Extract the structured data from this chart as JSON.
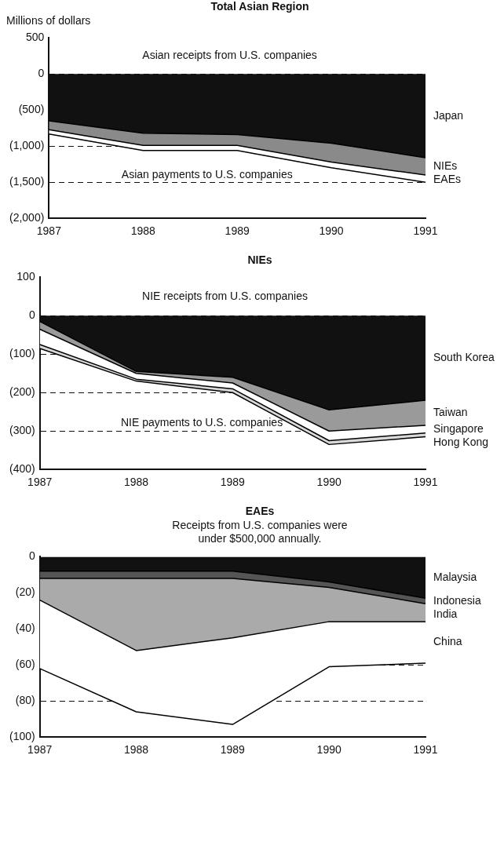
{
  "chart_data": [
    {
      "type": "area",
      "title": "Total Asian Region",
      "ylabel": "Millions of dollars",
      "categories": [
        "1987",
        "1988",
        "1989",
        "1990",
        "1991"
      ],
      "stacked": true,
      "grid": "y",
      "series": [
        {
          "name": "Japan",
          "color": "#111111",
          "values": [
            -650,
            -820,
            -840,
            -960,
            -1160
          ]
        },
        {
          "name": "NIEs",
          "color": "#8a8a8a",
          "values": [
            -120,
            -170,
            -150,
            -260,
            -240
          ]
        },
        {
          "name": "EAEs",
          "color": "#ffffff",
          "values": [
            -60,
            -70,
            -70,
            -80,
            -100
          ]
        }
      ],
      "ylim": [
        -2000,
        500
      ],
      "yticks": [
        500,
        0,
        {
          "value": -500,
          "label": "(500)"
        },
        {
          "value": -1000,
          "label": "(1,000)"
        },
        {
          "value": -1500,
          "label": "(1,500)"
        },
        {
          "value": -2000,
          "label": "(2,000)"
        }
      ],
      "annotations": [
        "Asian receipts from U.S. companies",
        "Asian payments to U.S. companies"
      ]
    },
    {
      "type": "area",
      "title": "NIEs",
      "categories": [
        "1987",
        "1988",
        "1989",
        "1990",
        "1991"
      ],
      "stacked": true,
      "grid": "y",
      "series": [
        {
          "name": "South Korea",
          "color": "#111111",
          "values": [
            -15,
            -145,
            -160,
            -245,
            -220
          ]
        },
        {
          "name": "Taiwan",
          "color": "#9a9a9a",
          "values": [
            -20,
            -5,
            -15,
            -55,
            -65
          ]
        },
        {
          "name": "Singapore",
          "color": "#ffffff",
          "values": [
            -40,
            -15,
            -15,
            -25,
            -20
          ]
        },
        {
          "name": "Hong Kong",
          "color": "#d8d8d8",
          "values": [
            -10,
            -5,
            -10,
            -10,
            -10
          ]
        }
      ],
      "ylim": [
        -400,
        100
      ],
      "yticks": [
        100,
        0,
        {
          "value": -100,
          "label": "(100)"
        },
        {
          "value": -200,
          "label": "(200)"
        },
        {
          "value": -300,
          "label": "(300)"
        },
        {
          "value": -400,
          "label": "(400)"
        }
      ],
      "annotations": [
        "NIE receipts from U.S. companies",
        "NIE payments to U.S. companies"
      ]
    },
    {
      "type": "area",
      "title": "EAEs",
      "subtitle": "Receipts from U.S. companies were under $500,000 annually.",
      "categories": [
        "1987",
        "1988",
        "1989",
        "1990",
        "1991"
      ],
      "stacked": true,
      "grid": "y",
      "series": [
        {
          "name": "Malaysia",
          "color": "#111111",
          "values": [
            -8,
            -8,
            -8,
            -14,
            -23
          ]
        },
        {
          "name": "Indonesia",
          "color": "#555555",
          "values": [
            -4,
            -4,
            -4,
            -3,
            -3
          ]
        },
        {
          "name": "India",
          "color": "#aaaaaa",
          "values": [
            -12,
            -40,
            -33,
            -19,
            -10
          ]
        },
        {
          "name": "China",
          "color": "#ffffff",
          "values": [
            -38,
            -34,
            -48,
            -25,
            -23
          ]
        }
      ],
      "ylim": [
        -100,
        0
      ],
      "yticks": [
        0,
        {
          "value": -20,
          "label": "(20)"
        },
        {
          "value": -40,
          "label": "(40)"
        },
        {
          "value": -60,
          "label": "(60)"
        },
        {
          "value": -80,
          "label": "(80)"
        },
        {
          "value": -100,
          "label": "(100)"
        }
      ]
    }
  ]
}
